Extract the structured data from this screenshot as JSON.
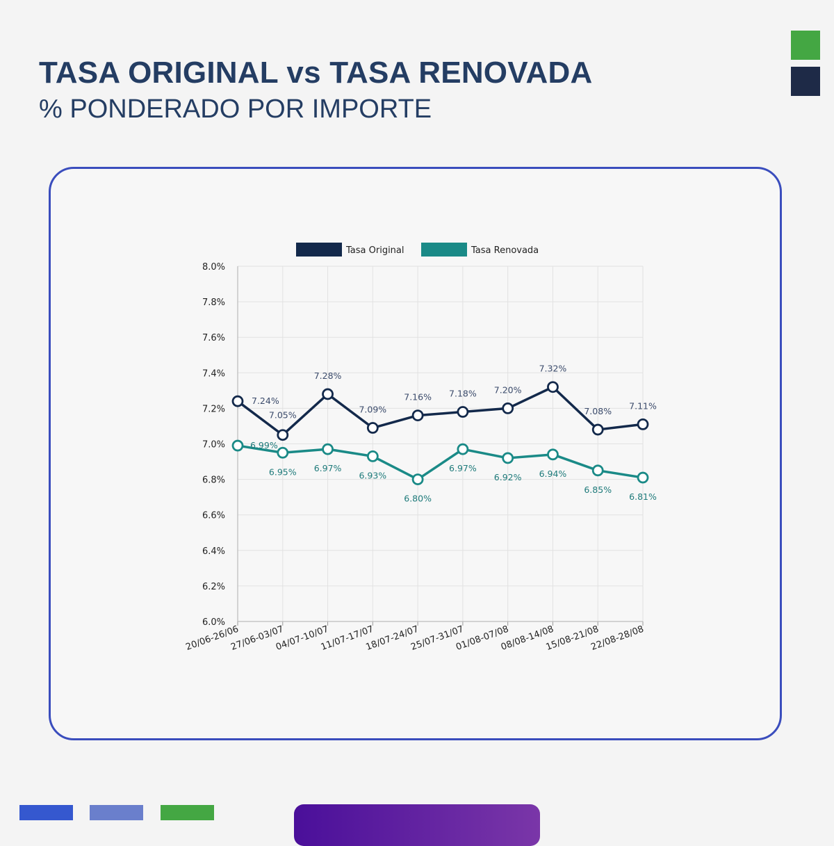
{
  "header": {
    "title": "TASA ORIGINAL vs TASA RENOVADA",
    "subtitle": "% PONDERADO POR IMPORTE"
  },
  "colors": {
    "title": "#243d63",
    "accent_green": "#44a743",
    "accent_navy": "#1e2a47",
    "card_border": "#3a4dbd",
    "bar_blue": "#3558cf",
    "bar_periwinkle": "#6a7fcc",
    "pill_start": "#4a0f9a",
    "pill_end": "#7a36a8"
  },
  "chart_data": {
    "type": "line",
    "categories": [
      "20/06-26/06",
      "27/06-03/07",
      "04/07-10/07",
      "11/07-17/07",
      "18/07-24/07",
      "25/07-31/07",
      "01/08-07/08",
      "08/08-14/08",
      "15/08-21/08",
      "22/08-28/08"
    ],
    "series": [
      {
        "name": "Tasa Original",
        "color": "#13294b",
        "values": [
          7.24,
          7.05,
          7.28,
          7.09,
          7.16,
          7.18,
          7.2,
          7.32,
          7.08,
          7.11
        ],
        "labels": [
          "7.24%",
          "7.05%",
          "7.28%",
          "7.09%",
          "7.16%",
          "7.18%",
          "7.20%",
          "7.32%",
          "7.08%",
          "7.11%"
        ]
      },
      {
        "name": "Tasa Renovada",
        "color": "#1a8a87",
        "values": [
          6.99,
          6.95,
          6.97,
          6.93,
          6.8,
          6.97,
          6.92,
          6.94,
          6.85,
          6.81
        ],
        "labels": [
          "6.99%",
          "6.95%",
          "6.97%",
          "6.93%",
          "6.80%",
          "6.97%",
          "6.92%",
          "6.94%",
          "6.85%",
          "6.81%"
        ]
      }
    ],
    "yticks": [
      "6.0%",
      "6.2%",
      "6.4%",
      "6.6%",
      "6.8%",
      "7.0%",
      "7.2%",
      "7.4%",
      "7.6%",
      "7.8%",
      "8.0%"
    ],
    "ylim": [
      6.0,
      8.0
    ],
    "grid": true,
    "legend": "top"
  }
}
